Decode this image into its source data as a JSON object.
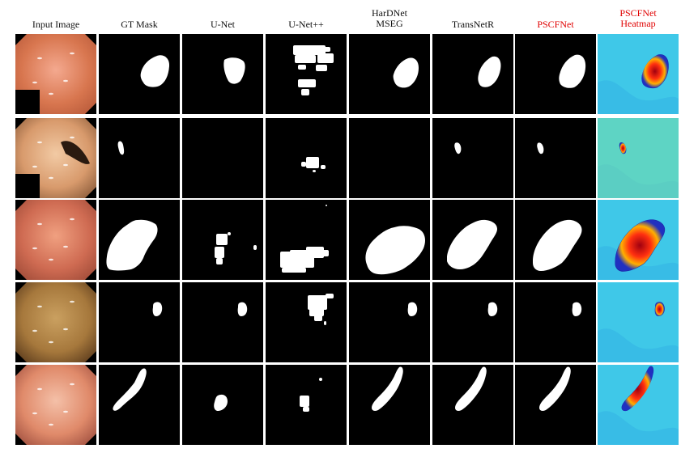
{
  "figure": {
    "columns": [
      {
        "label": "Input Image",
        "lines": [
          "Input Image"
        ],
        "highlight": false
      },
      {
        "label": "GT Mask",
        "lines": [
          "GT Mask"
        ],
        "highlight": false
      },
      {
        "label": "U-Net",
        "lines": [
          "U-Net"
        ],
        "highlight": false
      },
      {
        "label": "U-Net++",
        "lines": [
          "U-Net++"
        ],
        "highlight": false
      },
      {
        "label": "HarDNet MSEG",
        "lines": [
          "HarDNet",
          "MSEG"
        ],
        "highlight": false
      },
      {
        "label": "TransNetR",
        "lines": [
          "TransNetR"
        ],
        "highlight": false
      },
      {
        "label": "PSCFNet",
        "lines": [
          "PSCFNet"
        ],
        "highlight": true
      },
      {
        "label": "PSCFNet Heatmap",
        "lines": [
          "PSCFNet",
          "Heatmap"
        ],
        "highlight": true
      }
    ],
    "highlight_color": "#e00000",
    "mask_foreground": "#ffffff",
    "mask_background": "#000000",
    "rows": 5
  }
}
